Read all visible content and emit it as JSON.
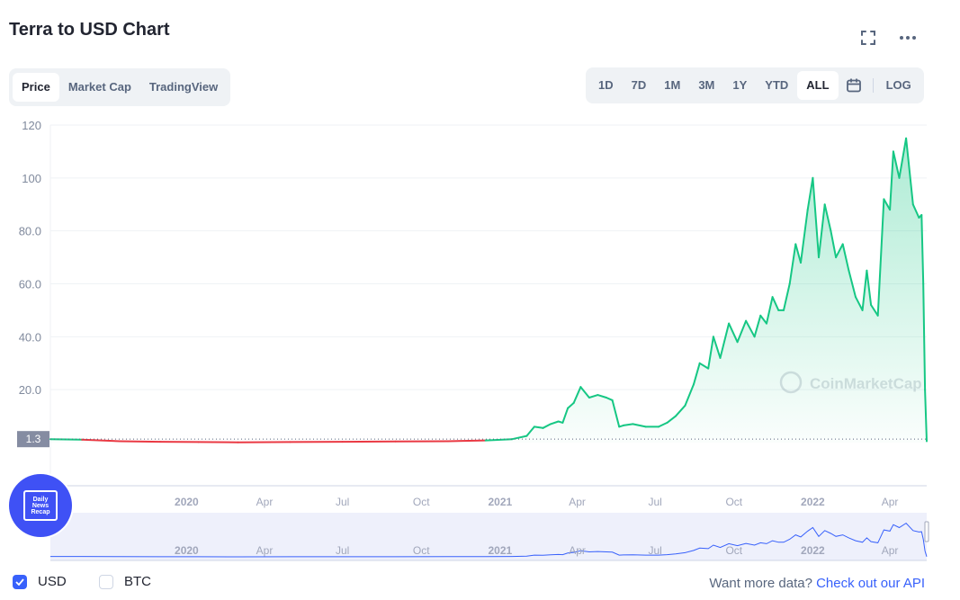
{
  "header": {
    "title": "Terra to USD Chart",
    "tabs": [
      "Price",
      "Market Cap",
      "TradingView"
    ],
    "active_tab": "Price",
    "ranges": [
      "1D",
      "7D",
      "1M",
      "3M",
      "1Y",
      "YTD",
      "ALL"
    ],
    "active_range": "ALL",
    "log_label": "LOG",
    "icons": [
      "fullscreen-icon",
      "more-icon",
      "calendar-icon"
    ]
  },
  "watermark": "CoinMarketCap",
  "current_price_label": "1.3",
  "footer": {
    "usd_label": "USD",
    "btc_label": "BTC",
    "usd_checked": true,
    "btc_checked": false,
    "api_prefix": "Want more data?",
    "api_link": "Check out our API"
  },
  "badge": {
    "line1": "Daily",
    "line2": "News",
    "line3": "Recap"
  },
  "colors": {
    "accent": "#3861fb",
    "up": "#16c784",
    "down": "#ea3943",
    "badge": "#3f51f5"
  },
  "chart_data": {
    "type": "line",
    "ylim": [
      0,
      120
    ],
    "yticks": [
      "120",
      "100",
      "80.0",
      "60.0",
      "40.0",
      "20.0"
    ],
    "ytick_values": [
      120,
      100,
      80,
      60,
      40,
      20
    ],
    "xticks": [
      "2020",
      "Apr",
      "Jul",
      "Oct",
      "2021",
      "Apr",
      "Jul",
      "Oct",
      "2022",
      "Apr"
    ],
    "xtick_dates": [
      "2020-01-01",
      "2020-04-01",
      "2020-07-01",
      "2020-10-01",
      "2021-01-01",
      "2021-04-01",
      "2021-07-01",
      "2021-10-01",
      "2022-01-01",
      "2022-04-01"
    ],
    "navigator_xticks": [
      "2020",
      "Apr",
      "Jul",
      "Oct",
      "2021",
      "Apr",
      "Jul",
      "Oct",
      "2022",
      "Apr"
    ],
    "x_range": [
      "2019-07-26",
      "2022-05-14"
    ],
    "reference_value": 1.3,
    "series": [
      {
        "x": [
          "2019-07-26",
          "2019-09-01",
          "2019-10-15",
          "2019-12-01",
          "2020-01-15",
          "2020-03-01",
          "2020-05-01",
          "2020-07-01",
          "2020-09-01",
          "2020-11-01",
          "2020-12-15",
          "2021-01-15",
          "2021-02-01",
          "2021-02-10",
          "2021-02-20",
          "2021-03-01",
          "2021-03-10",
          "2021-03-15",
          "2021-03-21",
          "2021-03-28",
          "2021-04-05",
          "2021-04-15",
          "2021-04-25",
          "2021-05-05",
          "2021-05-12",
          "2021-05-20",
          "2021-05-25",
          "2021-06-05",
          "2021-06-20",
          "2021-07-05",
          "2021-07-15",
          "2021-07-25",
          "2021-08-05",
          "2021-08-15",
          "2021-08-22",
          "2021-09-01",
          "2021-09-07",
          "2021-09-15",
          "2021-09-25",
          "2021-10-05",
          "2021-10-15",
          "2021-10-25",
          "2021-11-01",
          "2021-11-08",
          "2021-11-15",
          "2021-11-22",
          "2021-11-28",
          "2021-12-05",
          "2021-12-12",
          "2021-12-18",
          "2021-12-26",
          "2022-01-01",
          "2022-01-08",
          "2022-01-15",
          "2022-01-22",
          "2022-01-28",
          "2022-02-05",
          "2022-02-12",
          "2022-02-20",
          "2022-02-28",
          "2022-03-05",
          "2022-03-10",
          "2022-03-18",
          "2022-03-25",
          "2022-04-01",
          "2022-04-05",
          "2022-04-12",
          "2022-04-20",
          "2022-04-28",
          "2022-05-05",
          "2022-05-08",
          "2022-05-10",
          "2022-05-12",
          "2022-05-14"
        ],
        "values": [
          1.3,
          1.1,
          0.5,
          0.3,
          0.2,
          0.1,
          0.2,
          0.3,
          0.4,
          0.5,
          0.8,
          1.3,
          2.5,
          6,
          5.5,
          7,
          8,
          7.5,
          13,
          15,
          21,
          17,
          18,
          17,
          16,
          6,
          6.5,
          7,
          6,
          6,
          7.5,
          10,
          14,
          22,
          30,
          28,
          40,
          32,
          45,
          38,
          46,
          40,
          48,
          45,
          55,
          50,
          50,
          60,
          75,
          68,
          88,
          100,
          70,
          90,
          80,
          70,
          75,
          65,
          55,
          50,
          65,
          52,
          48,
          92,
          88,
          110,
          100,
          115,
          90,
          85,
          86,
          60,
          20,
          0.5
        ]
      }
    ],
    "title": "",
    "xlabel": "",
    "ylabel": ""
  }
}
